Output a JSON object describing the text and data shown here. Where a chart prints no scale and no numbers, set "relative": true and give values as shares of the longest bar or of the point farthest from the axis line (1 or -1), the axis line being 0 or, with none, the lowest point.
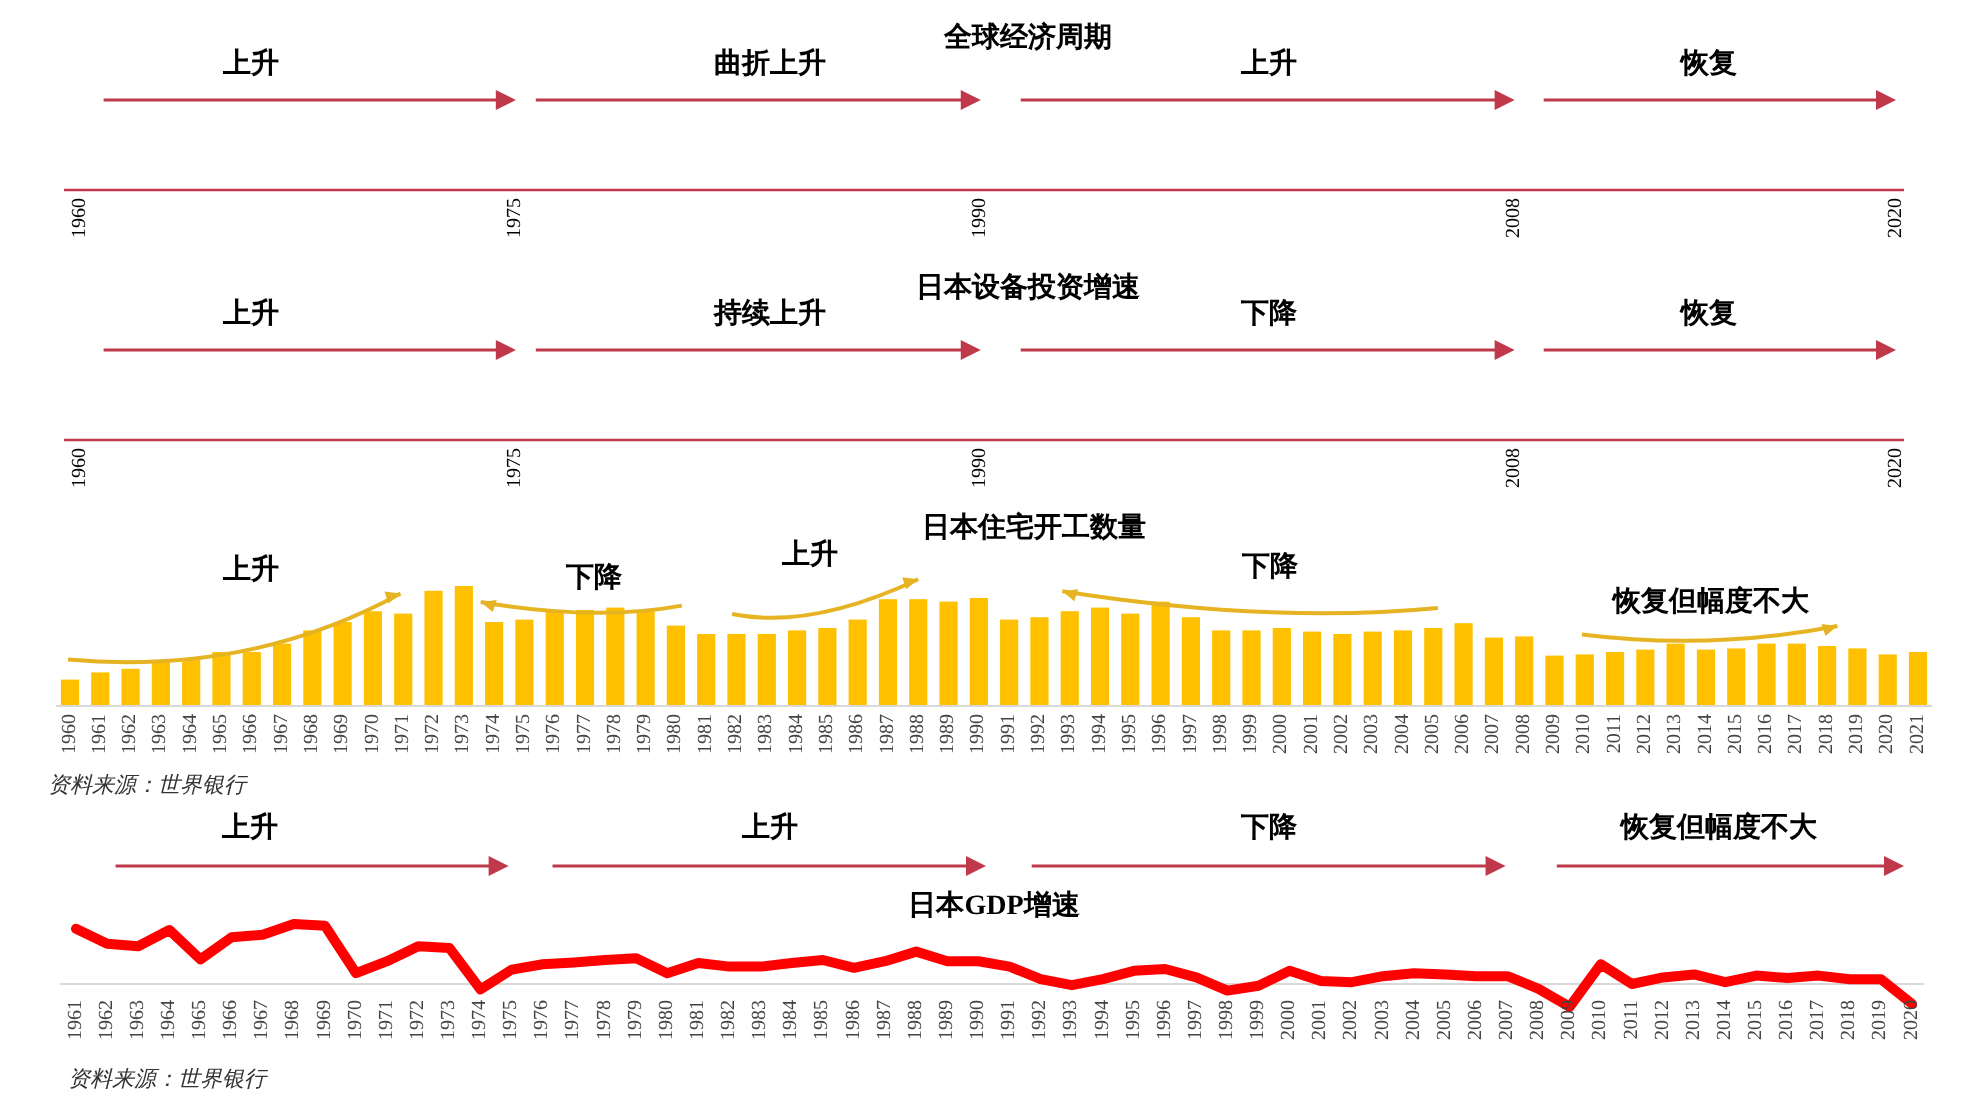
{
  "chart_data": [
    {
      "type": "other",
      "title": "全球经济周期",
      "annotations": [
        "上升",
        "曲折上升",
        "上升",
        "恢复",
        "1960",
        "1975",
        "1990",
        "2008",
        "2020"
      ]
    },
    {
      "type": "other",
      "title": "日本设备投资增速",
      "annotations": [
        "上升",
        "持续上升",
        "下降",
        "恢复",
        "1960",
        "1975",
        "1990",
        "2008",
        "2020"
      ]
    },
    {
      "type": "bar",
      "title": "日本住宅开工数量",
      "relative": true,
      "color": "#ffc000",
      "categories": [
        "1960",
        "1961",
        "1962",
        "1963",
        "1964",
        "1965",
        "1966",
        "1967",
        "1968",
        "1969",
        "1970",
        "1971",
        "1972",
        "1973",
        "1974",
        "1975",
        "1976",
        "1977",
        "1978",
        "1979",
        "1980",
        "1981",
        "1982",
        "1983",
        "1984",
        "1985",
        "1986",
        "1987",
        "1988",
        "1989",
        "1990",
        "1991",
        "1992",
        "1993",
        "1994",
        "1995",
        "1996",
        "1997",
        "1998",
        "1999",
        "2000",
        "2001",
        "2002",
        "2003",
        "2004",
        "2005",
        "2006",
        "2007",
        "2008",
        "2009",
        "2010",
        "2011",
        "2012",
        "2013",
        "2014",
        "2015",
        "2016",
        "2017",
        "2018",
        "2019",
        "2020",
        "2021"
      ],
      "values": [
        0.22,
        0.28,
        0.31,
        0.37,
        0.4,
        0.45,
        0.45,
        0.52,
        0.63,
        0.7,
        0.79,
        0.77,
        0.96,
        1,
        0.7,
        0.72,
        0.8,
        0.8,
        0.82,
        0.79,
        0.67,
        0.6,
        0.6,
        0.6,
        0.63,
        0.65,
        0.72,
        0.89,
        0.89,
        0.87,
        0.9,
        0.72,
        0.74,
        0.79,
        0.82,
        0.77,
        0.87,
        0.74,
        0.63,
        0.63,
        0.65,
        0.62,
        0.6,
        0.62,
        0.63,
        0.65,
        0.69,
        0.57,
        0.58,
        0.42,
        0.43,
        0.45,
        0.47,
        0.52,
        0.47,
        0.48,
        0.52,
        0.52,
        0.5,
        0.48,
        0.43,
        0.45
      ],
      "annotations": [
        "上升",
        "下降",
        "上升",
        "下降",
        "恢复但幅度不大",
        "资料来源：世界银行"
      ]
    },
    {
      "type": "line",
      "title": "日本GDP增速",
      "relative": true,
      "color": "#ff0000",
      "categories": [
        "1961",
        "1962",
        "1963",
        "1964",
        "1965",
        "1966",
        "1967",
        "1968",
        "1969",
        "1970",
        "1971",
        "1972",
        "1973",
        "1974",
        "1975",
        "1976",
        "1977",
        "1978",
        "1979",
        "1980",
        "1981",
        "1982",
        "1983",
        "1984",
        "1985",
        "1986",
        "1987",
        "1988",
        "1989",
        "1990",
        "1991",
        "1992",
        "1993",
        "1994",
        "1995",
        "1996",
        "1997",
        "1998",
        "1999",
        "2000",
        "2001",
        "2002",
        "2003",
        "2004",
        "2005",
        "2006",
        "2007",
        "2008",
        "2009",
        "2010",
        "2011",
        "2012",
        "2013",
        "2014",
        "2015",
        "2016",
        "2017",
        "2018",
        "2019",
        "2020"
      ],
      "values": [
        0.92,
        0.67,
        0.63,
        0.9,
        0.41,
        0.78,
        0.82,
        1,
        0.97,
        0.18,
        0.38,
        0.63,
        0.6,
        -0.09,
        0.24,
        0.33,
        0.36,
        0.4,
        0.43,
        0.18,
        0.35,
        0.29,
        0.29,
        0.35,
        0.4,
        0.27,
        0.38,
        0.54,
        0.38,
        0.38,
        0.29,
        0.08,
        -0.02,
        0.08,
        0.22,
        0.25,
        0.11,
        -0.11,
        -0.03,
        0.22,
        0.05,
        0.03,
        0.13,
        0.18,
        0.16,
        0.13,
        0.13,
        -0.08,
        -0.38,
        0.33,
        0,
        0.11,
        0.16,
        0.03,
        0.14,
        0.1,
        0.14,
        0.08,
        0.08,
        -0.33
      ],
      "annotations": [
        "上升",
        "上升",
        "下降",
        "恢复但幅度不大",
        "资料来源：世界银行"
      ]
    }
  ]
}
